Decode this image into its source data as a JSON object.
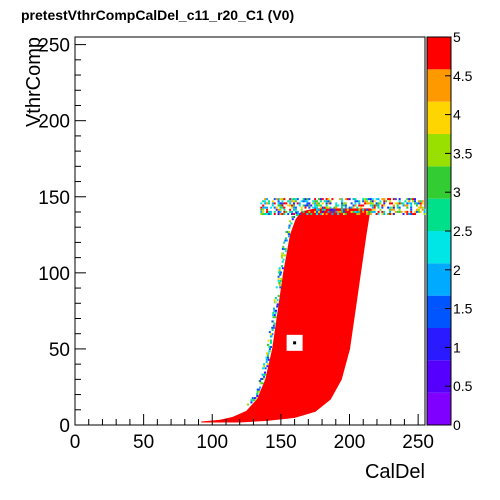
{
  "chart_data": {
    "type": "heatmap",
    "title": "pretestVthrCompCalDel_c11_r20_C1 (V0)",
    "xlabel": "CalDel",
    "ylabel": "VthrComp",
    "xlim": [
      0,
      255
    ],
    "ylim": [
      0,
      255
    ],
    "zlim": [
      0,
      5
    ],
    "x_ticks": [
      0,
      50,
      100,
      150,
      200,
      250
    ],
    "y_ticks": [
      0,
      50,
      100,
      150,
      200,
      250
    ],
    "z_ticks": [
      0,
      0.5,
      1,
      1.5,
      2,
      2.5,
      3,
      3.5,
      4,
      4.5,
      5
    ],
    "colormap": [
      "#7f00ff",
      "#5500ff",
      "#2a1aff",
      "#0055ff",
      "#00aaff",
      "#00e5e5",
      "#00e08a",
      "#33cc33",
      "#99e000",
      "#ffd500",
      "#ff9900",
      "#ff0000"
    ],
    "regions": [
      {
        "name": "saturated-pass-region",
        "value": 5,
        "color": "#ff0000",
        "lower_edge": [
          [
            92,
            2
          ],
          [
            105,
            3
          ],
          [
            115,
            5
          ],
          [
            125,
            9
          ],
          [
            133,
            17
          ],
          [
            139,
            30
          ],
          [
            144,
            50
          ],
          [
            148,
            75
          ],
          [
            152,
            100
          ],
          [
            157,
            125
          ],
          [
            161,
            135
          ],
          [
            165,
            140
          ],
          [
            175,
            142
          ],
          [
            205,
            142
          ],
          [
            215,
            142
          ]
        ],
        "upper_edge": [
          [
            215,
            142
          ],
          [
            212,
            125
          ],
          [
            208,
            100
          ],
          [
            204,
            75
          ],
          [
            200,
            50
          ],
          [
            194,
            30
          ],
          [
            186,
            17
          ],
          [
            175,
            9
          ],
          [
            160,
            5
          ],
          [
            140,
            3
          ],
          [
            120,
            2
          ],
          [
            92,
            2
          ]
        ]
      },
      {
        "name": "noisy-plateau",
        "value_range": [
          1,
          4
        ],
        "y_range": [
          138,
          148
        ],
        "x_range": [
          135,
          255
        ]
      },
      {
        "name": "noisy-left-edge",
        "value_range": [
          1,
          4
        ],
        "x_range": [
          115,
          145
        ],
        "y_range": [
          10,
          140
        ]
      },
      {
        "name": "missing-bin",
        "value": 0,
        "x": 160,
        "y": 54
      }
    ],
    "grid": false,
    "legend": "color-scale-right"
  }
}
